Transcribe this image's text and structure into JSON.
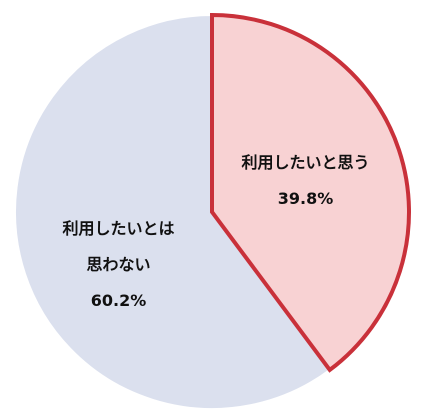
{
  "chart_data": {
    "type": "pie",
    "categories": [
      "利用したいと思う",
      "利用したいとは思わない"
    ],
    "values": [
      39.8,
      60.2
    ],
    "value_labels": [
      "39.8%",
      "60.2%"
    ],
    "colors": [
      "#f8d2d3",
      "#dbe0ee"
    ],
    "edge_colors": [
      "#c9313a",
      "#ffffff"
    ]
  }
}
